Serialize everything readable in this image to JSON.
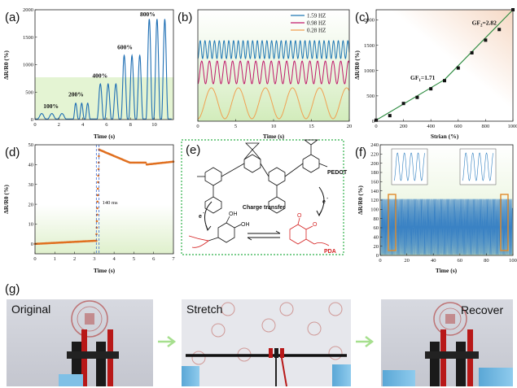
{
  "panels": {
    "a": {
      "label": "(a)"
    },
    "b": {
      "label": "(b)"
    },
    "c": {
      "label": "(c)"
    },
    "d": {
      "label": "(d)"
    },
    "e": {
      "label": "(e)"
    },
    "f": {
      "label": "(f)"
    },
    "g": {
      "label": "(g)"
    }
  },
  "chart_data": [
    {
      "id": "a",
      "type": "line",
      "xlabel": "Time (s)",
      "ylabel": "ΔR/R0 (%)",
      "xlim": [
        0,
        11.6
      ],
      "ylim": [
        0,
        2000
      ],
      "xticks": [
        "0",
        "2",
        "4",
        "6",
        "8",
        "10"
      ],
      "yticks": [
        "0",
        "500",
        "1000",
        "1500",
        "2000"
      ],
      "levels": [
        {
          "label": "100%",
          "peak": 110,
          "start": 0.2,
          "count": 3,
          "period": 0.85,
          "label_x": 0.7,
          "label_y": 210
        },
        {
          "label": "200%",
          "peak": 300,
          "start": 3.2,
          "count": 3,
          "period": 0.5,
          "label_x": 2.8,
          "label_y": 420
        },
        {
          "label": "400%",
          "peak": 650,
          "start": 5.2,
          "count": 3,
          "period": 0.65,
          "label_x": 4.8,
          "label_y": 760
        },
        {
          "label": "600%",
          "peak": 1170,
          "start": 7.2,
          "count": 3,
          "period": 0.65,
          "label_x": 6.9,
          "label_y": 1280
        },
        {
          "label": "800%",
          "peak": 1830,
          "start": 9.3,
          "count": 3,
          "period": 0.65,
          "label_x": 8.8,
          "label_y": 1880
        }
      ],
      "color": "#1f6fb4"
    },
    {
      "id": "b",
      "type": "line",
      "xlabel": "Time (s)",
      "ylabel": "",
      "xlim": [
        0,
        20
      ],
      "xticks": [
        "0",
        "5",
        "10",
        "15",
        "20"
      ],
      "series": [
        {
          "name": "1.59 HZ",
          "color": "#1f77b4",
          "freq": 1.59
        },
        {
          "name": "0.98 HZ",
          "color": "#c0186a",
          "freq": 0.98
        },
        {
          "name": "0.28 HZ",
          "color": "#f0a050",
          "freq": 0.28
        }
      ]
    },
    {
      "id": "c",
      "type": "scatter",
      "xlabel": "Strian (%)",
      "ylabel": "ΔR/R0 (%)",
      "xlim": [
        0,
        1000
      ],
      "ylim": [
        0,
        2200
      ],
      "xticks": [
        "0",
        "200",
        "400",
        "600",
        "800",
        "1000"
      ],
      "yticks": [
        "0",
        "500",
        "1000",
        "1500",
        "2000"
      ],
      "x": [
        0,
        100,
        200,
        300,
        400,
        500,
        600,
        700,
        800,
        900,
        1000
      ],
      "y": [
        20,
        110,
        350,
        470,
        640,
        800,
        1050,
        1350,
        1600,
        1810,
        2200
      ],
      "annotations": [
        {
          "text": "GF",
          "sub": "1",
          "value": "=1.71",
          "x": 250,
          "y": 820
        },
        {
          "text": "GF",
          "sub": "2",
          "value": "=2.82",
          "x": 700,
          "y": 1900
        }
      ]
    },
    {
      "id": "d",
      "type": "line",
      "xlabel": "Time (s)",
      "ylabel": "ΔR/R0 (%)",
      "xlim": [
        0,
        7
      ],
      "ylim": [
        -5,
        50
      ],
      "xticks": [
        "0",
        "1",
        "2",
        "3",
        "4",
        "5",
        "6",
        "7"
      ],
      "yticks": [
        "0",
        "10",
        "20",
        "30",
        "40",
        "50"
      ],
      "annotation": "140 ms",
      "color": "#e07020"
    },
    {
      "id": "f",
      "type": "line",
      "xlabel": "Time (s)",
      "ylabel": "ΔR/R0 (%)",
      "xlim": [
        0,
        100
      ],
      "ylim": [
        0,
        240
      ],
      "xticks": [
        "0",
        "20",
        "40",
        "60",
        "80",
        "100"
      ],
      "yticks": [
        "0",
        "20",
        "40",
        "60",
        "80",
        "100",
        "120",
        "140",
        "160",
        "180",
        "200",
        "220",
        "240"
      ],
      "color": "#3a82c4"
    }
  ],
  "chem": {
    "pedot": "PEDOT",
    "pda": "PDA",
    "transfer": "Charge transfer",
    "electron": "e",
    "oh": "OH",
    "o": "O"
  },
  "photos": {
    "original": "Original",
    "stretch": "Stretch",
    "recover": "Recover"
  },
  "colors": {
    "green_bg": "#e3f3cf",
    "dash_box": "#2fb14a",
    "arrow": "#a6df8e",
    "red": "#d42020"
  }
}
